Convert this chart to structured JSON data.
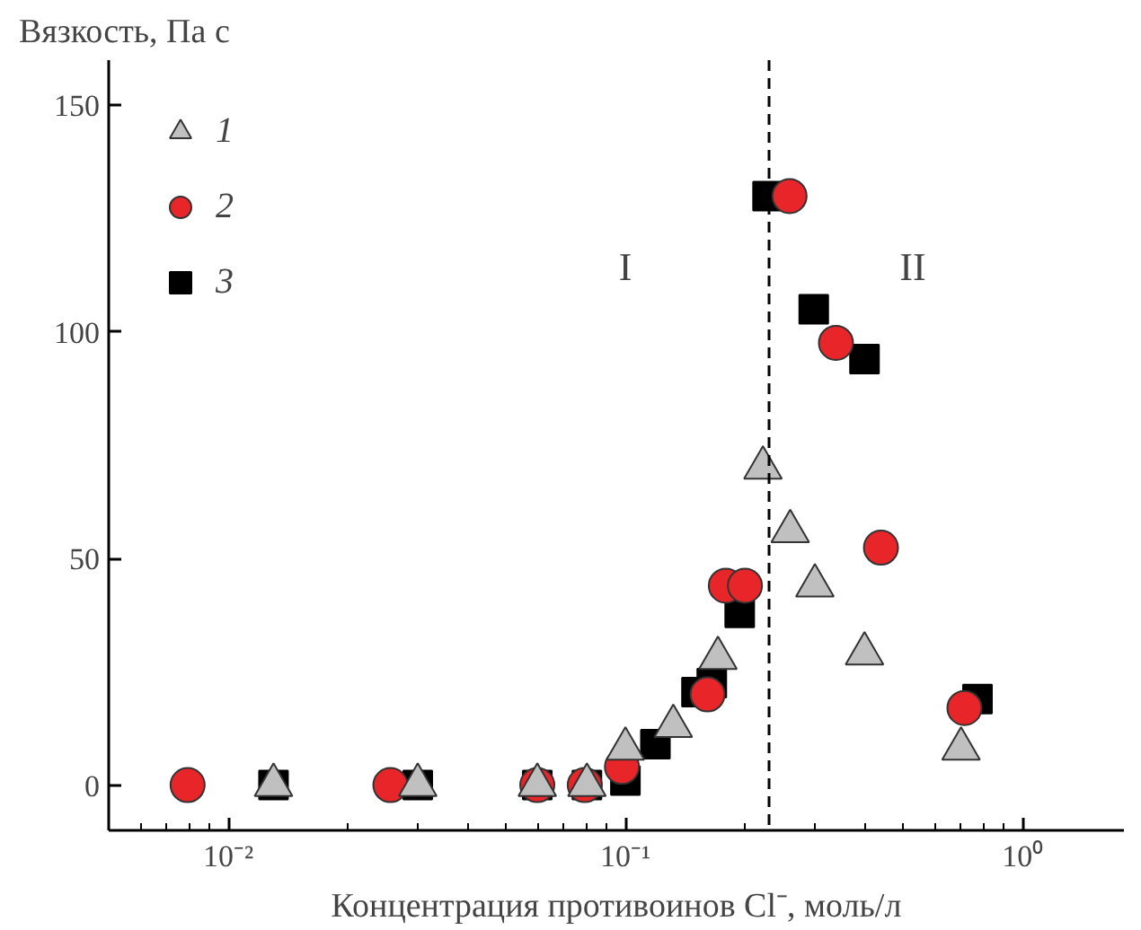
{
  "chart_data": {
    "type": "scatter",
    "xlabel": "Концентрация противоинов Cl⁻, моль/л",
    "ylabel": "Вязкость, Па с",
    "log": "x",
    "xlim": [
      0.005,
      1.8
    ],
    "ylim": [
      -10,
      160
    ],
    "xticks": [
      {
        "value": 0.01,
        "label": "10⁻²"
      },
      {
        "value": 0.1,
        "label": "10⁻¹"
      },
      {
        "value": 1,
        "label": "10⁰"
      }
    ],
    "yticks": [
      0,
      50,
      100,
      150
    ],
    "grid": false,
    "legend": "top left",
    "ref_lines": [
      {
        "axis": "x",
        "value": 0.23,
        "label": null,
        "color": "#000000",
        "line_style": "dashed"
      }
    ],
    "annotations": [
      "I",
      "II"
    ],
    "series": [
      {
        "name": "3",
        "color": "#000000",
        "marker": "square",
        "x": [
          0.013,
          0.03,
          0.06,
          0.08,
          0.1,
          0.119,
          0.151,
          0.165,
          0.194,
          0.228,
          0.298,
          0.4,
          0.77
        ],
        "values": [
          0,
          0,
          0,
          0,
          1,
          9,
          20.5,
          22.5,
          38,
          130,
          105,
          94,
          19
        ]
      },
      {
        "name": "2",
        "color": "#e8262a",
        "marker": "circle",
        "x": [
          0.0079,
          0.0256,
          0.06,
          0.079,
          0.098,
          0.161,
          0.179,
          0.2,
          0.259,
          0.339,
          0.44,
          0.714
        ],
        "values": [
          0,
          0,
          0,
          0,
          4,
          20,
          44,
          44,
          130,
          97.6,
          52.4,
          17
        ]
      },
      {
        "name": "1",
        "color": "#c0c0c0",
        "marker": "triangle",
        "x": [
          0.013,
          0.03,
          0.06,
          0.08,
          0.1,
          0.132,
          0.171,
          0.222,
          0.26,
          0.3,
          0.4,
          0.7
        ],
        "values": [
          0,
          0,
          0,
          0,
          8,
          13,
          28,
          70,
          56,
          44,
          29,
          8
        ]
      }
    ]
  }
}
